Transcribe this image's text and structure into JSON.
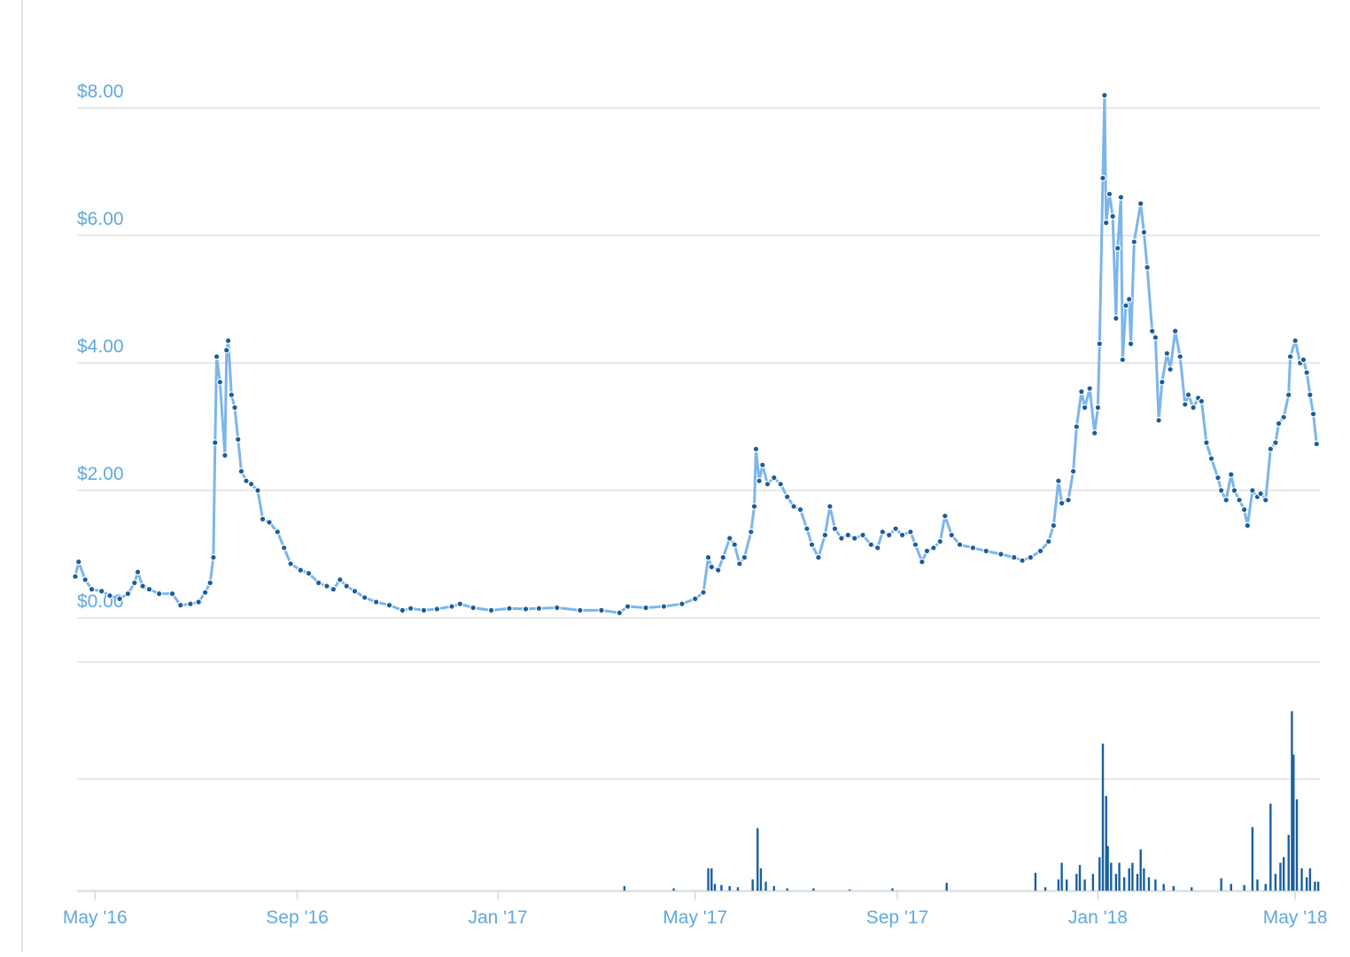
{
  "chart_data": [
    {
      "type": "line",
      "color": "#7cb5ec",
      "marker_color": "#1c5d99",
      "xlim": [
        -12,
        745
      ],
      "ylim": [
        -0.7,
        8.3
      ],
      "grid": true,
      "yticks": [
        {
          "value": 0,
          "label": "$0.00"
        },
        {
          "value": 2,
          "label": "$2.00"
        },
        {
          "value": 4,
          "label": "$4.00"
        },
        {
          "value": 6,
          "label": "$6.00"
        },
        {
          "value": 8,
          "label": "$8.00"
        }
      ],
      "x": [
        -12,
        -10,
        -6,
        -2,
        4,
        9,
        15,
        20,
        24,
        26,
        29,
        33,
        39,
        47,
        52,
        58,
        63,
        67,
        70,
        72,
        73,
        74,
        76,
        79,
        80,
        81,
        83,
        85,
        87,
        89,
        92,
        95,
        99,
        102,
        106,
        111,
        115,
        119,
        125,
        130,
        136,
        141,
        145,
        149,
        153,
        158,
        164,
        171,
        179,
        187,
        192,
        200,
        208,
        217,
        222,
        230,
        241,
        252,
        262,
        270,
        281,
        295,
        308,
        319,
        324,
        335,
        346,
        357,
        365,
        370,
        373,
        375,
        379,
        382,
        386,
        389,
        392,
        395,
        399,
        401,
        402,
        404,
        406,
        409,
        413,
        417,
        421,
        425,
        429,
        433,
        436,
        440,
        444,
        447,
        450,
        454,
        458,
        462,
        467,
        472,
        476,
        479,
        483,
        487,
        491,
        496,
        499,
        503,
        506,
        510,
        514,
        517,
        521,
        526,
        534,
        542,
        551,
        559,
        564,
        569,
        575,
        580,
        583,
        586,
        588,
        592,
        595,
        597,
        600,
        602,
        605,
        608,
        610,
        611,
        613,
        614,
        615,
        617,
        619,
        621,
        622,
        624,
        625,
        627,
        629,
        630,
        632,
        636,
        638,
        640,
        643,
        645,
        647,
        649,
        652,
        654,
        657,
        660,
        663,
        665,
        668,
        671,
        673,
        676,
        679,
        683,
        685,
        688,
        691,
        693,
        696,
        699,
        701,
        704,
        707,
        709,
        712,
        715,
        718,
        720,
        723,
        726,
        727,
        730,
        733,
        735,
        737,
        739,
        741,
        743
      ],
      "values": [
        0.65,
        0.88,
        0.6,
        0.45,
        0.42,
        0.35,
        0.3,
        0.38,
        0.55,
        0.72,
        0.5,
        0.45,
        0.38,
        0.38,
        0.2,
        0.22,
        0.25,
        0.4,
        0.55,
        0.95,
        2.75,
        4.1,
        3.7,
        2.55,
        4.2,
        4.35,
        3.5,
        3.3,
        2.8,
        2.3,
        2.15,
        2.1,
        2.0,
        1.55,
        1.5,
        1.35,
        1.1,
        0.85,
        0.75,
        0.7,
        0.55,
        0.5,
        0.45,
        0.6,
        0.5,
        0.42,
        0.32,
        0.25,
        0.2,
        0.12,
        0.15,
        0.12,
        0.14,
        0.18,
        0.22,
        0.16,
        0.12,
        0.15,
        0.14,
        0.15,
        0.16,
        0.12,
        0.12,
        0.08,
        0.18,
        0.16,
        0.18,
        0.22,
        0.3,
        0.4,
        0.95,
        0.8,
        0.75,
        0.95,
        1.25,
        1.15,
        0.85,
        0.95,
        1.35,
        1.75,
        2.65,
        2.15,
        2.4,
        2.1,
        2.2,
        2.1,
        1.9,
        1.75,
        1.7,
        1.4,
        1.15,
        0.95,
        1.3,
        1.75,
        1.4,
        1.25,
        1.3,
        1.25,
        1.3,
        1.15,
        1.1,
        1.35,
        1.3,
        1.4,
        1.3,
        1.35,
        1.15,
        0.88,
        1.05,
        1.1,
        1.2,
        1.6,
        1.3,
        1.15,
        1.1,
        1.05,
        1.0,
        0.95,
        0.9,
        0.95,
        1.05,
        1.2,
        1.45,
        2.15,
        1.8,
        1.85,
        2.3,
        3.0,
        3.55,
        3.3,
        3.6,
        2.9,
        3.3,
        4.3,
        6.9,
        8.2,
        6.2,
        6.65,
        6.3,
        4.7,
        5.8,
        6.6,
        4.05,
        4.9,
        5.0,
        4.3,
        5.9,
        6.5,
        6.05,
        5.5,
        4.5,
        4.4,
        3.1,
        3.7,
        4.15,
        3.9,
        4.5,
        4.1,
        3.35,
        3.5,
        3.3,
        3.45,
        3.4,
        2.75,
        2.5,
        2.2,
        2.0,
        1.85,
        2.25,
        2.0,
        1.85,
        1.7,
        1.45,
        2.0,
        1.9,
        1.95,
        1.85,
        2.65,
        2.75,
        3.05,
        3.15,
        3.5,
        4.1,
        4.35,
        4.0,
        4.05,
        3.85,
        3.5,
        3.2,
        2.73
      ]
    },
    {
      "type": "bar",
      "color": "#1a5fa0",
      "xlim": [
        -12,
        745
      ],
      "ylim": [
        0,
        2.05
      ],
      "grid": true,
      "yticks": [
        1
      ],
      "xticks": [
        {
          "value": 0,
          "label": "May '16"
        },
        {
          "value": 123,
          "label": "Sep '16"
        },
        {
          "value": 245,
          "label": "Jan '17"
        },
        {
          "value": 365,
          "label": "May '17"
        },
        {
          "value": 488,
          "label": "Sep '17"
        },
        {
          "value": 610,
          "label": "Jan '18"
        },
        {
          "value": 730,
          "label": "May '18"
        }
      ],
      "x": [
        322,
        352,
        373,
        375,
        377,
        381,
        386,
        391,
        400,
        403,
        405,
        408,
        413,
        421,
        437,
        459,
        485,
        518,
        572,
        578,
        586,
        588,
        591,
        597,
        599,
        602,
        607,
        611,
        613,
        615,
        616,
        618,
        621,
        623,
        626,
        629,
        631,
        634,
        636,
        638,
        641,
        645,
        650,
        656,
        667,
        685,
        691,
        699,
        704,
        707,
        712,
        715,
        718,
        721,
        723,
        726,
        728,
        729,
        731,
        734,
        737,
        739,
        742,
        744
      ],
      "values": [
        0.04,
        0.02,
        0.2,
        0.2,
        0.06,
        0.05,
        0.04,
        0.03,
        0.1,
        0.56,
        0.2,
        0.08,
        0.04,
        0.02,
        0.02,
        0.01,
        0.02,
        0.07,
        0.16,
        0.03,
        0.1,
        0.25,
        0.1,
        0.15,
        0.23,
        0.1,
        0.15,
        0.3,
        1.32,
        0.85,
        0.4,
        0.25,
        0.15,
        0.25,
        0.12,
        0.2,
        0.25,
        0.15,
        0.37,
        0.2,
        0.12,
        0.1,
        0.06,
        0.04,
        0.03,
        0.11,
        0.06,
        0.05,
        0.57,
        0.1,
        0.06,
        0.78,
        0.15,
        0.25,
        0.3,
        0.5,
        1.61,
        1.22,
        0.82,
        0.2,
        0.12,
        0.2,
        0.08,
        0.08
      ]
    }
  ]
}
